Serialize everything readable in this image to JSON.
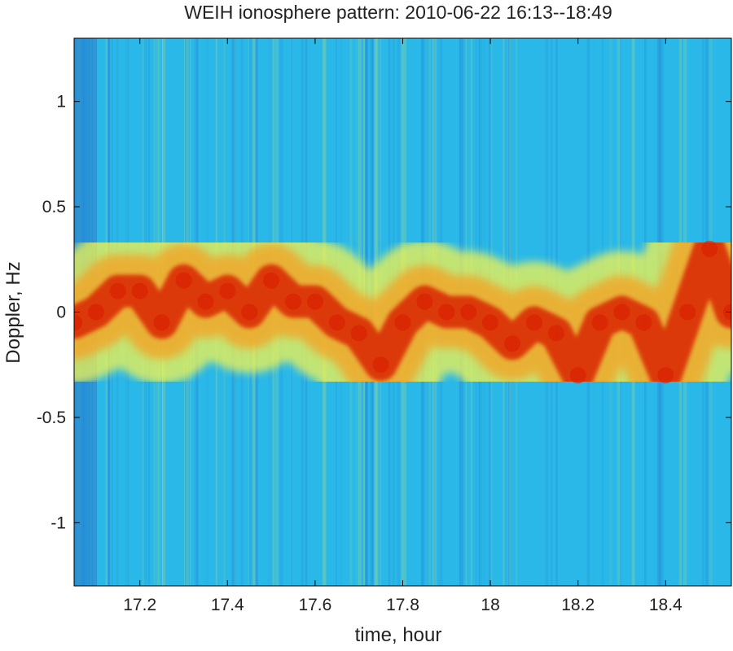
{
  "chart_data": {
    "type": "heatmap",
    "title": "WEIH ionosphere pattern: 2010-06-22 16:13--18:49",
    "xlabel": "time, hour",
    "ylabel": "Doppler, Hz",
    "xlim": [
      17.05,
      18.55
    ],
    "ylim": [
      -1.3,
      1.3
    ],
    "xticks": [
      17.2,
      17.4,
      17.6,
      17.8,
      18,
      18.2,
      18.4
    ],
    "xtick_labels": [
      "17.2",
      "17.4",
      "17.6",
      "17.8",
      "18",
      "18.2",
      "18.4"
    ],
    "yticks": [
      1,
      0.5,
      0,
      -0.5,
      -1
    ],
    "ytick_labels": [
      "1",
      "0.5",
      "0",
      "-0.5",
      "-1"
    ],
    "colormap": "jet",
    "colors": {
      "low": "#1e64c8",
      "background": "#2ab8e8",
      "mid": "#f4f450",
      "high": "#d81a00"
    },
    "doppler_trace": {
      "x": [
        17.05,
        17.1,
        17.15,
        17.2,
        17.25,
        17.3,
        17.35,
        17.4,
        17.45,
        17.5,
        17.55,
        17.6,
        17.65,
        17.7,
        17.75,
        17.8,
        17.85,
        17.9,
        17.95,
        18.0,
        18.05,
        18.1,
        18.15,
        18.2,
        18.25,
        18.3,
        18.35,
        18.4,
        18.45,
        18.5,
        18.55
      ],
      "y": [
        -0.05,
        0.0,
        0.1,
        0.1,
        -0.05,
        0.15,
        0.05,
        0.1,
        0.0,
        0.15,
        0.05,
        0.05,
        -0.05,
        -0.1,
        -0.25,
        -0.05,
        0.05,
        0.0,
        0.0,
        -0.05,
        -0.15,
        -0.05,
        -0.1,
        -0.3,
        -0.05,
        0.0,
        -0.05,
        -0.3,
        0.0,
        0.3,
        0.0
      ]
    }
  }
}
